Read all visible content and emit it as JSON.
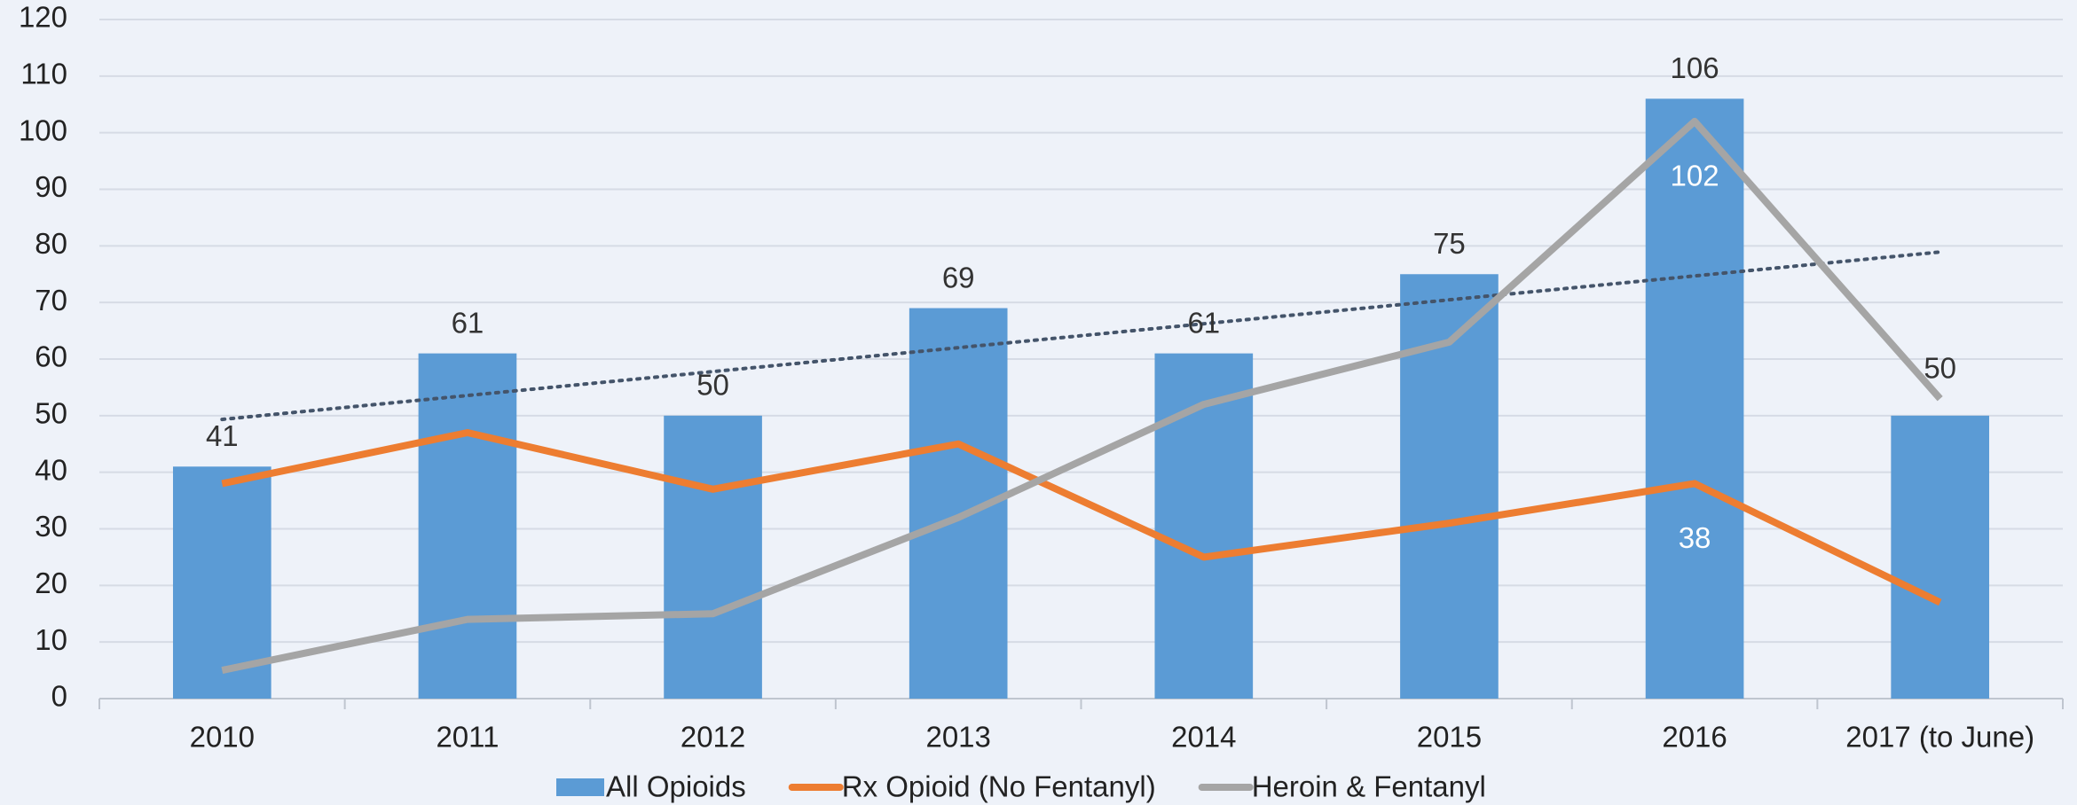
{
  "chart_data": {
    "type": "bar",
    "categories": [
      "2010",
      "2011",
      "2012",
      "2013",
      "2014",
      "2015",
      "2016",
      "2017 (to June)"
    ],
    "series": [
      {
        "name": "All Opioids",
        "type": "bar",
        "color": "#5b9bd5",
        "values": [
          41,
          61,
          50,
          69,
          61,
          75,
          106,
          50
        ],
        "trendline": true
      },
      {
        "name": "Rx Opioid (No Fentanyl)",
        "type": "line",
        "color": "#ed7d31",
        "values": [
          38,
          47,
          37,
          45,
          25,
          31,
          38,
          17
        ],
        "value_labels": [
          null,
          null,
          null,
          null,
          null,
          null,
          "38",
          null
        ]
      },
      {
        "name": "Heroin & Fentanyl",
        "type": "line",
        "color": "#a5a5a5",
        "values": [
          5,
          14,
          15,
          32,
          52,
          63,
          102,
          53
        ],
        "value_labels": [
          null,
          null,
          null,
          null,
          null,
          null,
          "102",
          null
        ]
      }
    ],
    "ylim": [
      0,
      120
    ],
    "yticks": [
      0,
      10,
      20,
      30,
      40,
      50,
      60,
      70,
      80,
      90,
      100,
      110,
      120
    ],
    "grid": true,
    "legend": "bottom"
  }
}
